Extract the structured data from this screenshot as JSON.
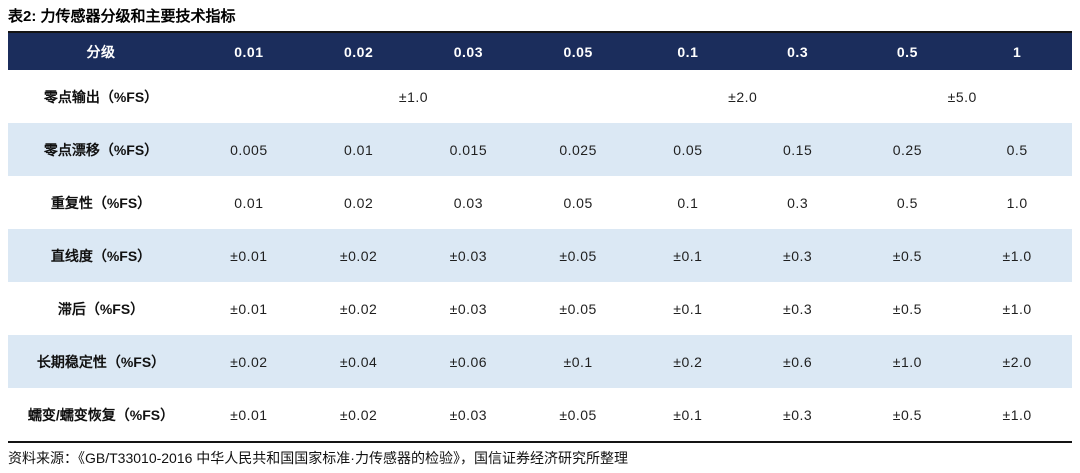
{
  "page": {
    "title": "表2: 力传感器分级和主要技术指标",
    "source_note": "资料来源：《GB/T33010-2016 中华人民共和国国家标准·力传感器的检验》，国信证券经济研究所整理"
  },
  "colors": {
    "header_bg": "#1b2d5c",
    "header_text": "#ffffff",
    "alt_row_bg": "#dbe8f4",
    "body_text": "#1f1f1f",
    "rule": "#141414"
  },
  "chart_data": {
    "type": "table",
    "title": "表2: 力传感器分级和主要技术指标",
    "columns": [
      "分级",
      "0.01",
      "0.02",
      "0.03",
      "0.05",
      "0.1",
      "0.3",
      "0.5",
      "1"
    ],
    "rows": [
      {
        "label": "零点输出（%FS）",
        "cells": [
          "±1.0",
          "±2.0",
          "±5.0"
        ],
        "spans": [
          4,
          2,
          2
        ]
      },
      {
        "label": "零点漂移（%FS）",
        "cells": [
          "0.005",
          "0.01",
          "0.015",
          "0.025",
          "0.05",
          "0.15",
          "0.25",
          "0.5"
        ],
        "spans": [
          1,
          1,
          1,
          1,
          1,
          1,
          1,
          1
        ]
      },
      {
        "label": "重复性（%FS）",
        "cells": [
          "0.01",
          "0.02",
          "0.03",
          "0.05",
          "0.1",
          "0.3",
          "0.5",
          "1.0"
        ],
        "spans": [
          1,
          1,
          1,
          1,
          1,
          1,
          1,
          1
        ]
      },
      {
        "label": "直线度（%FS）",
        "cells": [
          "±0.01",
          "±0.02",
          "±0.03",
          "±0.05",
          "±0.1",
          "±0.3",
          "±0.5",
          "±1.0"
        ],
        "spans": [
          1,
          1,
          1,
          1,
          1,
          1,
          1,
          1
        ]
      },
      {
        "label": "滞后（%FS）",
        "cells": [
          "±0.01",
          "±0.02",
          "±0.03",
          "±0.05",
          "±0.1",
          "±0.3",
          "±0.5",
          "±1.0"
        ],
        "spans": [
          1,
          1,
          1,
          1,
          1,
          1,
          1,
          1
        ]
      },
      {
        "label": "长期稳定性（%FS）",
        "cells": [
          "±0.02",
          "±0.04",
          "±0.06",
          "±0.1",
          "±0.2",
          "±0.6",
          "±1.0",
          "±2.0"
        ],
        "spans": [
          1,
          1,
          1,
          1,
          1,
          1,
          1,
          1
        ]
      },
      {
        "label": "蠕变/蠕变恢复（%FS）",
        "cells": [
          "±0.01",
          "±0.02",
          "±0.03",
          "±0.05",
          "±0.1",
          "±0.3",
          "±0.5",
          "±1.0"
        ],
        "spans": [
          1,
          1,
          1,
          1,
          1,
          1,
          1,
          1
        ]
      }
    ],
    "source": "资料来源：《GB/T33010-2016 中华人民共和国国家标准·力传感器的检验》，国信证券经济研究所整理"
  }
}
